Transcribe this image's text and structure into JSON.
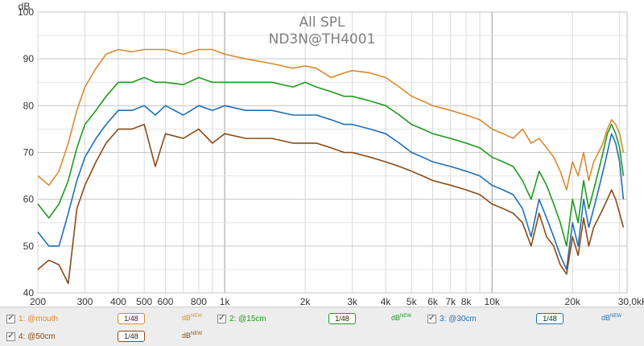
{
  "colors": {
    "mouth": "#d98a2e",
    "cm15": "#1e9a1e",
    "cm30": "#1f6fb5",
    "cm50": "#8b4a14",
    "grid": "#d4d4d4",
    "panel": "#ededed"
  },
  "legend": {
    "items": [
      {
        "check": "✓",
        "label": "1: @mouth",
        "smoothing": "1/48",
        "unit": "dB",
        "unit_sup": "NEW"
      },
      {
        "check": "✓",
        "label": "2: @15cm",
        "smoothing": "1/48",
        "unit": "dB",
        "unit_sup": "NEW"
      },
      {
        "check": "✓",
        "label": "3: @30cm",
        "smoothing": "1/48",
        "unit": "dB",
        "unit_sup": "NEW"
      },
      {
        "check": "✓",
        "label": "4: @50cm",
        "smoothing": "1/48",
        "unit": "dB",
        "unit_sup": "NEW"
      }
    ]
  },
  "chart_data": {
    "type": "line",
    "title": "All SPL",
    "subtitle": "ND3N@TH4001",
    "ylabel": "dB",
    "xlabel": "",
    "x_scale": "log",
    "xlim": [
      200,
      32000
    ],
    "ylim": [
      40,
      100
    ],
    "grid": true,
    "x_ticks": [
      200,
      300,
      400,
      500,
      600,
      800,
      1000,
      2000,
      3000,
      4000,
      5000,
      6000,
      7000,
      8000,
      10000,
      20000,
      30000
    ],
    "x_tick_labels": [
      "200",
      "300",
      "400",
      "500",
      "600",
      "800",
      "1k",
      "2k",
      "3k",
      "4k",
      "5k",
      "6k",
      "7k",
      "8k",
      "10k",
      "20k",
      "30,0kHz"
    ],
    "y_ticks": [
      40,
      50,
      60,
      70,
      80,
      90,
      100
    ],
    "y_tick_labels": [
      "40",
      "50",
      "60",
      "70",
      "80",
      "90",
      "100"
    ],
    "series": [
      {
        "name": "1: @mouth",
        "color": "#d98a2e",
        "x": [
          200,
          220,
          240,
          260,
          280,
          300,
          330,
          360,
          400,
          450,
          500,
          550,
          600,
          700,
          800,
          900,
          1000,
          1200,
          1500,
          1800,
          2000,
          2200,
          2500,
          2800,
          3000,
          3500,
          4000,
          4500,
          5000,
          5500,
          6000,
          7000,
          8000,
          9000,
          10000,
          11000,
          12000,
          13000,
          14000,
          15000,
          16000,
          17000,
          18000,
          19000,
          20000,
          21000,
          22000,
          23000,
          24000,
          25000,
          26000,
          27000,
          28000,
          29000,
          30000,
          31000
        ],
        "y": [
          65,
          63,
          66,
          72,
          79,
          84,
          88,
          91,
          92,
          91.5,
          92,
          92,
          92,
          91,
          92,
          92,
          91,
          90,
          89,
          88,
          88.5,
          88,
          86,
          87,
          87.5,
          87,
          86,
          84,
          82,
          81,
          80,
          79,
          78,
          77,
          75,
          74,
          73,
          75,
          72,
          73,
          71,
          69,
          66,
          62,
          68,
          65,
          70,
          64,
          68,
          70,
          72,
          75,
          77,
          76,
          74,
          70
        ]
      },
      {
        "name": "2: @15cm",
        "color": "#1e9a1e",
        "x": [
          200,
          220,
          240,
          260,
          280,
          300,
          330,
          360,
          400,
          450,
          500,
          550,
          600,
          700,
          800,
          900,
          1000,
          1200,
          1500,
          1800,
          2000,
          2200,
          2500,
          2800,
          3000,
          3500,
          4000,
          4500,
          5000,
          5500,
          6000,
          7000,
          8000,
          9000,
          10000,
          11000,
          12000,
          13000,
          14000,
          15000,
          16000,
          17000,
          18000,
          19000,
          20000,
          21000,
          22000,
          23000,
          24000,
          25000,
          26000,
          27000,
          28000,
          29000,
          30000,
          31000
        ],
        "y": [
          59,
          56,
          59,
          64,
          71,
          76,
          79,
          82,
          85,
          85,
          86,
          85,
          85,
          84.5,
          86,
          85,
          85,
          85,
          85,
          84,
          85,
          84,
          83,
          82,
          82,
          81,
          80,
          78,
          76,
          75,
          74,
          73,
          72,
          71,
          69,
          68,
          67,
          64,
          60,
          66,
          63,
          59,
          55,
          50,
          60,
          55,
          64,
          58,
          62,
          66,
          70,
          74,
          76,
          74,
          71,
          65
        ]
      },
      {
        "name": "3: @30cm",
        "color": "#1f6fb5",
        "x": [
          200,
          220,
          240,
          260,
          280,
          300,
          330,
          360,
          400,
          450,
          500,
          550,
          600,
          700,
          800,
          900,
          1000,
          1200,
          1500,
          1800,
          2000,
          2200,
          2500,
          2800,
          3000,
          3500,
          4000,
          4500,
          5000,
          5500,
          6000,
          7000,
          8000,
          9000,
          10000,
          11000,
          12000,
          13000,
          14000,
          15000,
          16000,
          17000,
          18000,
          19000,
          20000,
          21000,
          22000,
          23000,
          24000,
          25000,
          26000,
          27000,
          28000,
          29000,
          30000,
          31000
        ],
        "y": [
          53,
          50,
          50,
          57,
          64,
          69,
          73,
          76,
          79,
          79,
          80,
          78,
          80,
          78,
          80,
          79,
          80,
          79,
          79,
          78,
          78,
          78,
          77,
          76,
          76,
          75,
          74,
          72,
          70,
          69,
          68,
          67,
          66,
          65,
          63,
          62,
          61,
          58,
          52,
          60,
          56,
          52,
          48,
          45,
          55,
          50,
          60,
          54,
          58,
          62,
          66,
          70,
          74,
          72,
          68,
          60
        ]
      },
      {
        "name": "4: @50cm",
        "color": "#8b4a14",
        "x": [
          200,
          220,
          240,
          260,
          280,
          300,
          330,
          360,
          400,
          450,
          500,
          550,
          600,
          700,
          800,
          900,
          1000,
          1200,
          1500,
          1800,
          2000,
          2200,
          2500,
          2800,
          3000,
          3500,
          4000,
          4500,
          5000,
          5500,
          6000,
          7000,
          8000,
          9000,
          10000,
          11000,
          12000,
          13000,
          14000,
          15000,
          16000,
          17000,
          18000,
          19000,
          20000,
          21000,
          22000,
          23000,
          24000,
          25000,
          26000,
          27000,
          28000,
          29000,
          30000,
          31000
        ],
        "y": [
          45,
          47,
          46,
          42,
          58,
          63,
          68,
          72,
          75,
          75,
          76,
          67,
          74,
          73,
          75,
          72,
          74,
          73,
          73,
          72,
          72,
          72,
          71,
          70,
          70,
          69,
          68,
          67,
          66,
          65,
          64,
          63,
          62,
          61,
          59,
          58,
          57,
          55,
          50,
          57,
          52,
          50,
          46,
          44,
          52,
          48,
          56,
          50,
          54,
          56,
          58,
          60,
          62,
          60,
          57,
          54
        ]
      }
    ]
  }
}
